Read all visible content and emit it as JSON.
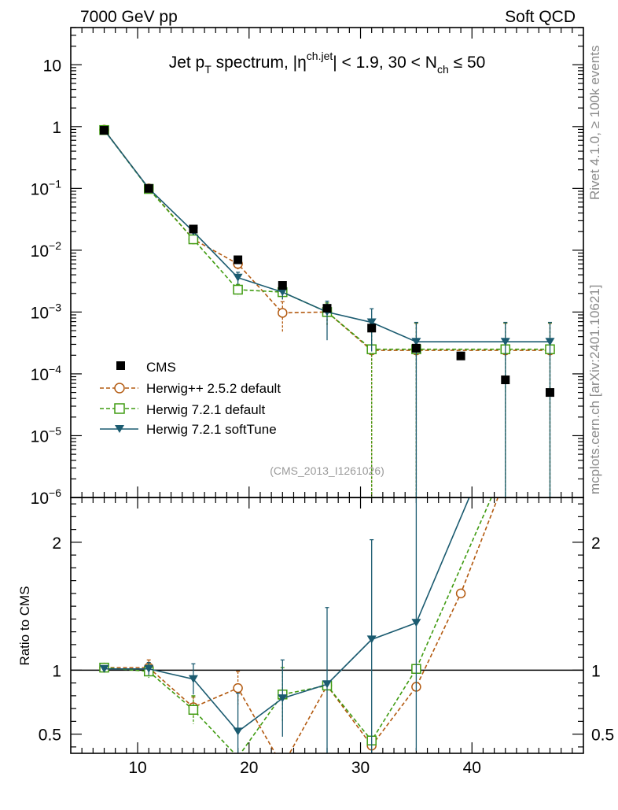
{
  "header": {
    "energy_label": "7000 GeV pp",
    "category_label": "Soft QCD"
  },
  "side_labels": {
    "rivet": "Rivet 4.1.0, ≥ 100k events",
    "mcplots": "mcplots.cern.ch [arXiv:2401.10621]"
  },
  "colors": {
    "cms": "#000000",
    "herwigpp": "#b35a10",
    "herwig721": "#3f9b10",
    "softtune": "#1b5b70"
  },
  "chart_data": [
    {
      "type": "scatter",
      "panel": "main",
      "title": "Jet p_T spectrum, |η^{ch.jet}| < 1.9, 30 < N_ch ≤ 50",
      "title_parts": {
        "t1": "Jet p",
        "t1_sub": "T",
        "t2": " spectrum, |η",
        "t2_sup": "ch.jet",
        "t3": "| < 1.9, 30 < N",
        "t3_sub": "ch",
        "t4": " ≤ 50"
      },
      "watermark": "(CMS_2013_I1261026)",
      "xlabel": "",
      "ylabel": "",
      "yscale": "log",
      "xlim": [
        4,
        50
      ],
      "ylim": [
        1e-06,
        40
      ],
      "x_ticks": [
        10,
        20,
        30,
        40
      ],
      "y_tick_labels": [
        {
          "v": 10,
          "base": "10",
          "exp": ""
        },
        {
          "v": 1,
          "base": "1",
          "exp": ""
        },
        {
          "v": 0.1,
          "base": "10",
          "exp": "−1"
        },
        {
          "v": 0.01,
          "base": "10",
          "exp": "−2"
        },
        {
          "v": 0.001,
          "base": "10",
          "exp": "−3"
        },
        {
          "v": 0.0001,
          "base": "10",
          "exp": "−4"
        },
        {
          "v": 1e-05,
          "base": "10",
          "exp": "−5"
        },
        {
          "v": 1e-06,
          "base": "10",
          "exp": "−6"
        }
      ],
      "series": [
        {
          "name": "CMS",
          "style": "data",
          "x": [
            7,
            11,
            15,
            19,
            23,
            27,
            31,
            35,
            39,
            43,
            47
          ],
          "y": [
            0.87,
            0.1,
            0.022,
            0.007,
            0.0027,
            0.00115,
            0.00055,
            0.00026,
            0.000195,
            8e-05,
            5e-05
          ]
        },
        {
          "name": "Herwig++ 2.5.2 default",
          "style": "herwigpp",
          "x": [
            7,
            11,
            15,
            19,
            23,
            27,
            31,
            35,
            43,
            47
          ],
          "y": [
            0.89,
            0.1,
            0.015,
            0.006,
            0.00097,
            0.001,
            0.00024,
            0.00024,
            0.00024,
            0.00024
          ],
          "err_low": [
            0.02,
            0.006,
            0.0015,
            0.0012,
            0.0005,
            0.0004,
            0.000239,
            0.000239,
            0.000239,
            0.000239
          ],
          "err_high": [
            0.02,
            0.006,
            0.0015,
            0.0012,
            0.0005,
            0.0004,
            0.00042,
            0.00042,
            0.00042,
            0.00042
          ]
        },
        {
          "name": "Herwig 7.2.1 default",
          "style": "herwig721",
          "x": [
            7,
            11,
            15,
            19,
            23,
            27,
            31,
            35,
            43,
            47
          ],
          "y": [
            0.88,
            0.098,
            0.015,
            0.0023,
            0.0021,
            0.001,
            0.00025,
            0.00025,
            0.00025,
            0.00025
          ],
          "err_low": [
            0.02,
            0.006,
            0.0015,
            0.0005,
            0.0005,
            0.0004,
            0.000249,
            0.000249,
            0.000249,
            0.000249
          ],
          "err_high": [
            0.02,
            0.006,
            0.0015,
            0.0005,
            0.0005,
            0.0004,
            0.00042,
            0.00042,
            0.00042,
            0.00042
          ]
        },
        {
          "name": "Herwig 7.2.1 softTune",
          "style": "softtune",
          "x": [
            7,
            11,
            15,
            19,
            23,
            27,
            31,
            35,
            43,
            47
          ],
          "y": [
            0.88,
            0.1,
            0.02,
            0.0036,
            0.0021,
            0.001,
            0.00068,
            0.00033,
            0.00033,
            0.00033
          ],
          "err_low": [
            0.02,
            0.006,
            0.0015,
            0.0008,
            0.0005,
            0.00065,
            0.00045,
            0.000329,
            0.000329,
            0.000329
          ],
          "err_high": [
            0.02,
            0.006,
            0.0015,
            0.0008,
            0.0005,
            0.0005,
            0.00045,
            0.00035,
            0.00035,
            0.00035
          ]
        }
      ]
    },
    {
      "type": "line",
      "panel": "ratio",
      "ylabel": "Ratio to CMS",
      "xlim": [
        4,
        50
      ],
      "ylim": [
        0.35,
        2.35
      ],
      "reference_line": 1,
      "x_ticks": [
        10,
        20,
        30,
        40
      ],
      "x_tick_labels": [
        "10",
        "20",
        "30",
        "40"
      ],
      "y_ticks": [
        0.5,
        1,
        2
      ],
      "y_tick_labels": [
        "0.5",
        "1",
        "2"
      ],
      "series": [
        {
          "name": "Herwig++ 2.5.2 default",
          "style": "herwigpp",
          "x": [
            7,
            11,
            15,
            19,
            23,
            27,
            31,
            35,
            39,
            43
          ],
          "y": [
            1.02,
            1.02,
            0.71,
            0.86,
            0.25,
            0.88,
            0.41,
            0.87,
            1.6,
            2.5
          ],
          "err_low": [
            0.02,
            0.06,
            0.08,
            0.13,
            0.0,
            0.0,
            0.0,
            0.0,
            0.0,
            0.0
          ],
          "err_high": [
            0.02,
            0.06,
            0.08,
            0.13,
            0.0,
            0.0,
            0.0,
            0.0,
            0.0,
            0.0
          ]
        },
        {
          "name": "Herwig 7.2.1 default",
          "style": "herwig721",
          "x": [
            7,
            11,
            15,
            19,
            23,
            27,
            31,
            35,
            42
          ],
          "y": [
            1.02,
            0.99,
            0.69,
            0.32,
            0.81,
            0.88,
            0.45,
            1.01,
            2.4
          ],
          "err_low": [
            0.02,
            0.05,
            0.11,
            0.0,
            0.21,
            0.0,
            0.0,
            0.0,
            0.0
          ],
          "err_high": [
            0.02,
            0.05,
            0.11,
            0.0,
            0.21,
            0.0,
            0.0,
            0.0,
            0.0
          ]
        },
        {
          "name": "Herwig 7.2.1 softTune",
          "style": "softtune",
          "x": [
            7,
            11,
            15,
            19,
            23,
            27,
            31,
            35,
            40
          ],
          "y": [
            1.01,
            1.01,
            0.93,
            0.52,
            0.78,
            0.89,
            1.24,
            1.37,
            2.4
          ],
          "err_low": [
            0.02,
            0.05,
            0.12,
            0.3,
            0.3,
            0.6,
            0.9,
            1.0,
            0.0
          ],
          "err_high": [
            0.02,
            0.05,
            0.12,
            0.3,
            0.3,
            0.6,
            0.78,
            1.0,
            0.0
          ]
        }
      ]
    }
  ]
}
